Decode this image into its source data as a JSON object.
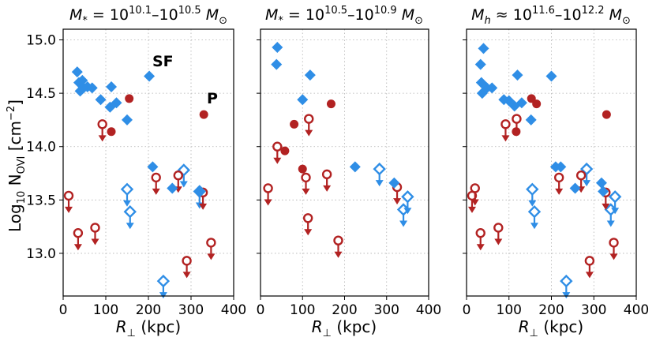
{
  "chart_data": {
    "type": "scatter",
    "ylabel": "Log₁₀ Nₒᵥᵢ [cm⁻²]",
    "ylabel_parts": {
      "pre": "Log",
      "sub": "10",
      "mid": " N",
      "ion": "OVI",
      "post": " [cm",
      "exp": "−2",
      "end": "]"
    },
    "xlabel": "R⊥ (kpc)",
    "xlabel_parts": {
      "sym": "R",
      "sub": "⊥",
      "unit": " (kpc)"
    },
    "xlim": [
      0,
      400
    ],
    "ylim": [
      12.6,
      15.1
    ],
    "xticks": [
      0,
      100,
      200,
      300,
      400
    ],
    "yticks": [
      13.0,
      13.5,
      14.0,
      14.5,
      15.0
    ],
    "ytick_labels": [
      "13.0",
      "13.5",
      "14.0",
      "14.5",
      "15.0"
    ],
    "legend_labels": {
      "sf": "SF",
      "p": "P"
    },
    "colors": {
      "sf": "#2f8ee6",
      "p": "#b22222"
    },
    "panels": [
      {
        "title": {
          "a": "M",
          "b": "*",
          "c": " = 10",
          "d": "10.1",
          "e": "–10",
          "f": "10.5",
          "g": " M",
          "h": "⊙"
        },
        "sf_detections": [
          [
            33,
            14.7
          ],
          [
            37,
            14.6
          ],
          [
            40,
            14.52
          ],
          [
            45,
            14.62
          ],
          [
            48,
            14.55
          ],
          [
            57,
            14.56
          ],
          [
            68,
            14.55
          ],
          [
            88,
            14.44
          ],
          [
            110,
            14.37
          ],
          [
            113,
            14.56
          ],
          [
            125,
            14.41
          ],
          [
            150,
            14.25
          ],
          [
            202,
            14.66
          ],
          [
            210,
            13.81
          ],
          [
            256,
            13.61
          ],
          [
            322,
            13.58
          ]
        ],
        "sf_limits": [
          [
            150,
            13.6
          ],
          [
            157,
            13.39
          ],
          [
            235,
            12.74
          ],
          [
            283,
            13.78
          ],
          [
            320,
            13.58
          ]
        ],
        "p_detections": [
          [
            113,
            14.14
          ],
          [
            155,
            14.45
          ],
          [
            330,
            14.3
          ]
        ],
        "p_limits": [
          [
            13,
            13.54
          ],
          [
            35,
            13.19
          ],
          [
            75,
            13.24
          ],
          [
            92,
            14.21
          ],
          [
            218,
            13.71
          ],
          [
            270,
            13.73
          ],
          [
            290,
            12.93
          ],
          [
            328,
            13.57
          ],
          [
            347,
            13.1
          ]
        ]
      },
      {
        "title": {
          "a": "M",
          "b": "*",
          "c": " = 10",
          "d": "10.5",
          "e": "–10",
          "f": "10.9",
          "g": " M",
          "h": "⊙"
        },
        "sf_detections": [
          [
            38,
            14.77
          ],
          [
            40,
            14.93
          ],
          [
            100,
            14.44
          ],
          [
            118,
            14.67
          ],
          [
            225,
            13.81
          ],
          [
            318,
            13.66
          ]
        ],
        "sf_limits": [
          [
            283,
            13.79
          ],
          [
            340,
            13.41
          ],
          [
            350,
            13.53
          ]
        ],
        "p_detections": [
          [
            58,
            13.96
          ],
          [
            80,
            14.21
          ],
          [
            100,
            13.79
          ],
          [
            168,
            14.4
          ]
        ],
        "p_limits": [
          [
            18,
            13.61
          ],
          [
            40,
            14.0
          ],
          [
            108,
            13.71
          ],
          [
            115,
            14.26
          ],
          [
            113,
            13.33
          ],
          [
            158,
            13.74
          ],
          [
            185,
            13.12
          ],
          [
            325,
            13.62
          ]
        ]
      },
      {
        "title": {
          "a": "M",
          "b": "h",
          "c": " ≈ 10",
          "d": "11.6",
          "e": "–10",
          "f": "12.2",
          "g": " M",
          "h": "⊙"
        },
        "sf_detections": [
          [
            33,
            14.77
          ],
          [
            35,
            14.6
          ],
          [
            37,
            14.5
          ],
          [
            40,
            14.92
          ],
          [
            48,
            14.55
          ],
          [
            60,
            14.55
          ],
          [
            88,
            14.44
          ],
          [
            100,
            14.43
          ],
          [
            113,
            14.38
          ],
          [
            120,
            14.67
          ],
          [
            130,
            14.41
          ],
          [
            152,
            14.25
          ],
          [
            200,
            14.66
          ],
          [
            210,
            13.81
          ],
          [
            222,
            13.81
          ],
          [
            256,
            13.61
          ],
          [
            318,
            13.66
          ],
          [
            322,
            13.58
          ]
        ],
        "sf_limits": [
          [
            155,
            13.6
          ],
          [
            160,
            13.39
          ],
          [
            235,
            12.74
          ],
          [
            283,
            13.79
          ],
          [
            340,
            13.41
          ],
          [
            350,
            13.53
          ]
        ],
        "p_detections": [
          [
            117,
            14.14
          ],
          [
            153,
            14.45
          ],
          [
            165,
            14.4
          ],
          [
            330,
            14.3
          ]
        ],
        "p_limits": [
          [
            13,
            13.54
          ],
          [
            20,
            13.61
          ],
          [
            33,
            13.19
          ],
          [
            75,
            13.24
          ],
          [
            92,
            14.21
          ],
          [
            118,
            14.26
          ],
          [
            218,
            13.71
          ],
          [
            270,
            13.73
          ],
          [
            290,
            12.93
          ],
          [
            328,
            13.57
          ],
          [
            347,
            13.1
          ]
        ]
      }
    ]
  }
}
